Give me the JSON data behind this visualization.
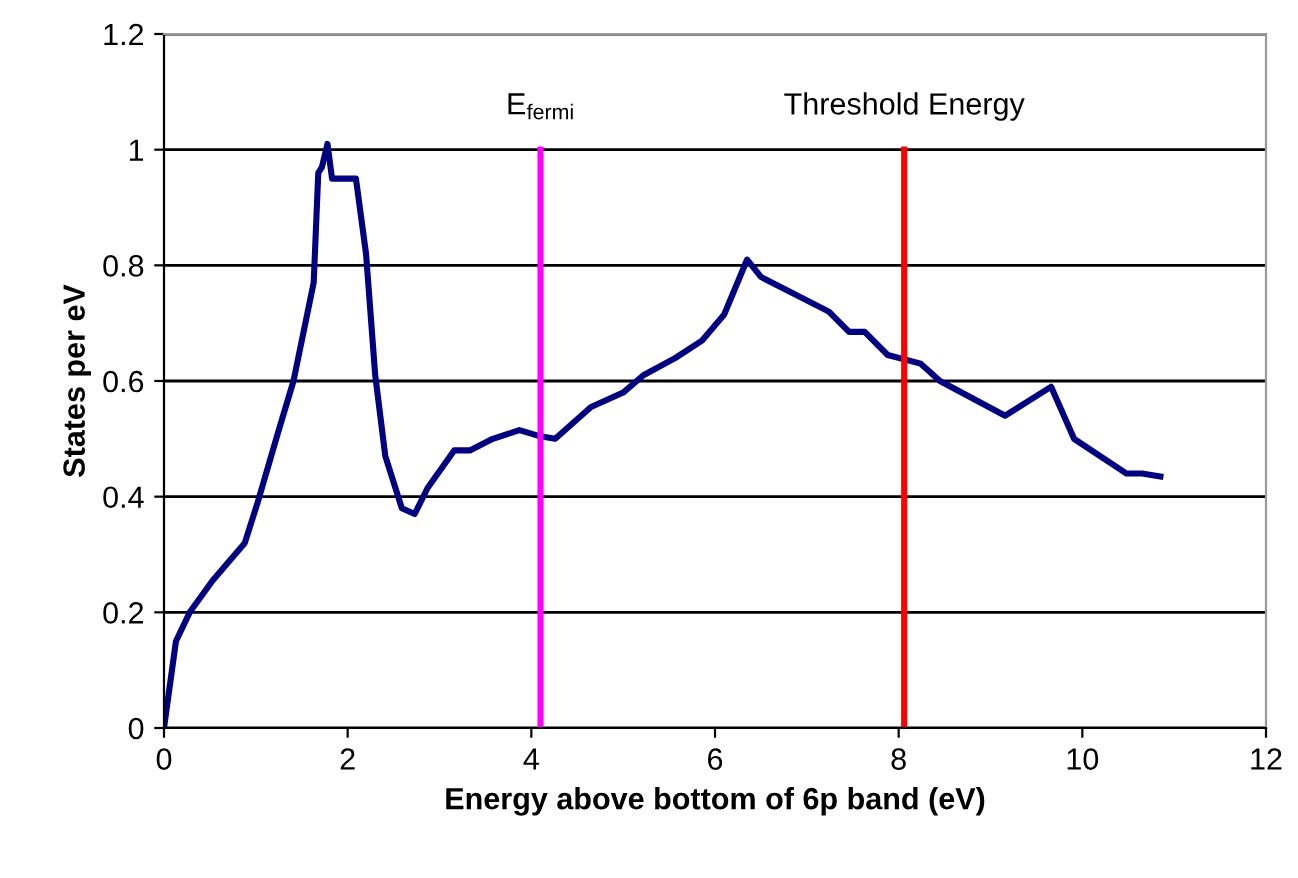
{
  "chart_data": {
    "type": "line",
    "xlabel": "Energy above bottom of 6p band (eV)",
    "ylabel": "States per eV",
    "series": [
      {
        "color": "#000080",
        "x": [
          0,
          0.13,
          0.28,
          0.53,
          0.88,
          1.02,
          1.24,
          1.41,
          1.63,
          1.68,
          1.72,
          1.78,
          1.83,
          2.09,
          2.2,
          2.3,
          2.41,
          2.59,
          2.73,
          2.87,
          3.16,
          3.33,
          3.58,
          3.87,
          4.08,
          4.26,
          4.65,
          5.0,
          5.22,
          5.57,
          5.86,
          6.1,
          6.35,
          6.5,
          7.24,
          7.46,
          7.63,
          7.88,
          8.24,
          8.45,
          9.16,
          9.66,
          9.91,
          10.48,
          10.65,
          10.85
        ],
        "values": [
          0,
          0.15,
          0.2,
          0.255,
          0.32,
          0.39,
          0.51,
          0.6,
          0.77,
          0.96,
          0.97,
          1.01,
          0.95,
          0.95,
          0.82,
          0.61,
          0.47,
          0.38,
          0.37,
          0.415,
          0.48,
          0.48,
          0.5,
          0.515,
          0.505,
          0.5,
          0.555,
          0.58,
          0.61,
          0.64,
          0.67,
          0.715,
          0.81,
          0.78,
          0.72,
          0.685,
          0.685,
          0.645,
          0.63,
          0.6,
          0.54,
          0.59,
          0.5,
          0.44,
          0.44,
          0.435
        ]
      }
    ],
    "xlim": [
      0,
      12
    ],
    "xticks": [
      0,
      2,
      4,
      6,
      8,
      10,
      12
    ],
    "ylim": [
      0,
      1.2
    ],
    "yticks": [
      0,
      0.2,
      0.4,
      0.6,
      0.8,
      1,
      1.2
    ],
    "grid": "y",
    "legend": false,
    "marker": "none",
    "line_style": "solid",
    "ref_lines": [
      {
        "axis": "x",
        "value": 4.1,
        "label": "E$_{fermi}$",
        "color": "#ff00ff"
      },
      {
        "axis": "x",
        "value": 8.06,
        "label": "Threshold Energy",
        "color": "#ff0000"
      }
    ]
  }
}
